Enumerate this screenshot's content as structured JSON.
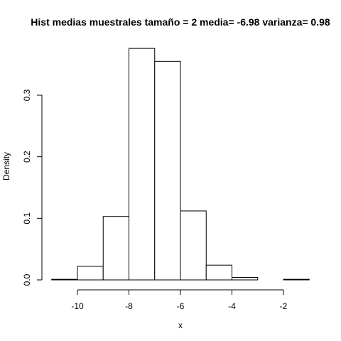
{
  "chart_data": {
    "type": "bar",
    "title": "Hist medias muestrales  tamaño =  2 media= -6.98 varianza= 0.98",
    "xlabel": "x",
    "ylabel": "Density",
    "xlim": [
      -11,
      -1
    ],
    "ylim": [
      0,
      0.38
    ],
    "grid": false,
    "bins": [
      {
        "x0": -11,
        "x1": -10,
        "density": 0.001
      },
      {
        "x0": -10,
        "x1": -9,
        "density": 0.022
      },
      {
        "x0": -9,
        "x1": -8,
        "density": 0.103
      },
      {
        "x0": -8,
        "x1": -7,
        "density": 0.376
      },
      {
        "x0": -7,
        "x1": -6,
        "density": 0.355
      },
      {
        "x0": -6,
        "x1": -5,
        "density": 0.112
      },
      {
        "x0": -5,
        "x1": -4,
        "density": 0.024
      },
      {
        "x0": -4,
        "x1": -3,
        "density": 0.004
      },
      {
        "x0": -3,
        "x1": -2,
        "density": 0.0
      },
      {
        "x0": -2,
        "x1": -1,
        "density": 0.001
      }
    ],
    "x_ticks": [
      -10,
      -8,
      -6,
      -4,
      -2
    ],
    "x_tick_labels": [
      "-10",
      "-8",
      "-6",
      "-4",
      "-2"
    ],
    "y_ticks": [
      0.0,
      0.1,
      0.2,
      0.3
    ],
    "y_tick_labels": [
      "0.0",
      "0.1",
      "0.2",
      "0.3"
    ]
  }
}
